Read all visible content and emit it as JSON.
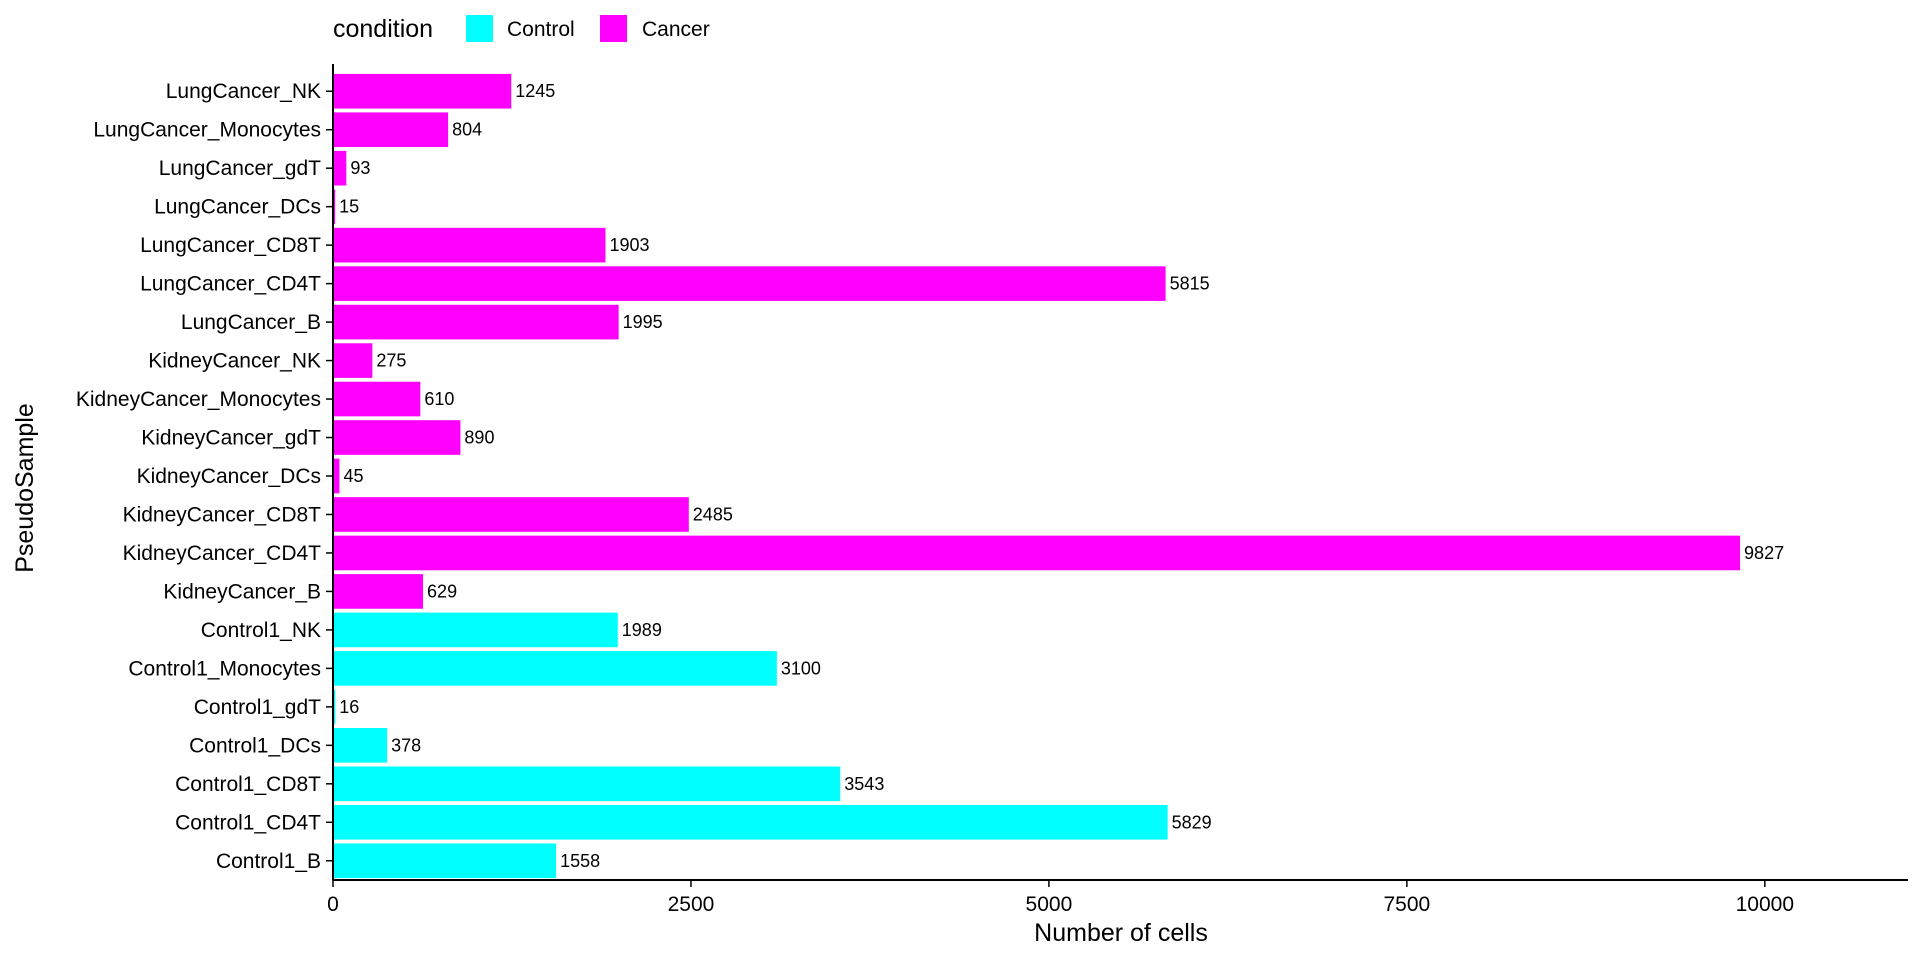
{
  "chart_data": {
    "type": "bar",
    "orientation": "horizontal",
    "title": "",
    "xlabel": "Number of cells",
    "ylabel": "PseudoSample",
    "xlim": [
      0,
      11000
    ],
    "x_ticks": [
      0,
      2500,
      5000,
      7500,
      10000
    ],
    "grid": false,
    "legend": {
      "title": "condition",
      "position": "top",
      "entries": [
        {
          "name": "Control",
          "color": "#00FFFF"
        },
        {
          "name": "Cancer",
          "color": "#FF00FF"
        }
      ]
    },
    "categories": [
      "LungCancer_NK",
      "LungCancer_Monocytes",
      "LungCancer_gdT",
      "LungCancer_DCs",
      "LungCancer_CD8T",
      "LungCancer_CD4T",
      "LungCancer_B",
      "KidneyCancer_NK",
      "KidneyCancer_Monocytes",
      "KidneyCancer_gdT",
      "KidneyCancer_DCs",
      "KidneyCancer_CD8T",
      "KidneyCancer_CD4T",
      "KidneyCancer_B",
      "Control1_NK",
      "Control1_Monocytes",
      "Control1_gdT",
      "Control1_DCs",
      "Control1_CD8T",
      "Control1_CD4T",
      "Control1_B"
    ],
    "values": [
      1245,
      804,
      93,
      15,
      1903,
      5815,
      1995,
      275,
      610,
      890,
      45,
      2485,
      9827,
      629,
      1989,
      3100,
      16,
      378,
      3543,
      5829,
      1558
    ],
    "condition": [
      "Cancer",
      "Cancer",
      "Cancer",
      "Cancer",
      "Cancer",
      "Cancer",
      "Cancer",
      "Cancer",
      "Cancer",
      "Cancer",
      "Cancer",
      "Cancer",
      "Cancer",
      "Cancer",
      "Control",
      "Control",
      "Control",
      "Control",
      "Control",
      "Control",
      "Control"
    ]
  }
}
